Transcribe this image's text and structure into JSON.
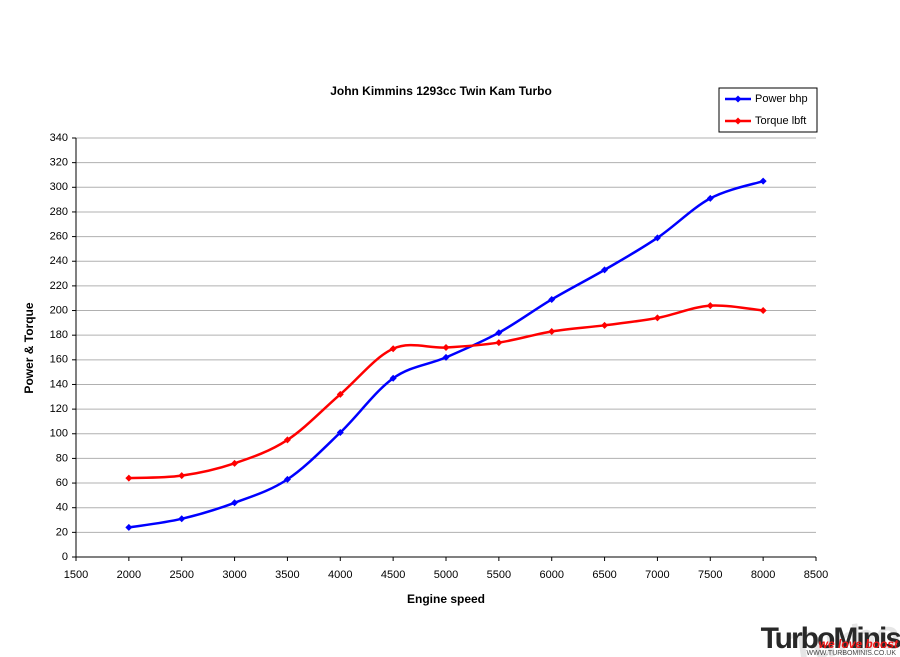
{
  "chart_data": {
    "type": "line",
    "title": "John Kimmins 1293cc Twin Kam Turbo",
    "x_label": "Engine speed",
    "y_label": "Power & Torque",
    "x": [
      2000,
      2500,
      3000,
      3500,
      4000,
      4500,
      5000,
      5500,
      6000,
      6500,
      7000,
      7500,
      8000
    ],
    "series": [
      {
        "name": "Power bhp",
        "color": "#0000ff",
        "values": [
          24,
          31,
          44,
          63,
          101,
          145,
          162,
          182,
          209,
          233,
          259,
          291,
          305
        ]
      },
      {
        "name": "Torque lbft",
        "color": "#ff0000",
        "values": [
          64,
          66,
          76,
          95,
          132,
          169,
          170,
          174,
          183,
          188,
          194,
          204,
          200
        ]
      }
    ],
    "xlim": [
      1500,
      8500
    ],
    "xticks": [
      1500,
      2000,
      2500,
      3000,
      3500,
      4000,
      4500,
      5000,
      5500,
      6000,
      6500,
      7000,
      7500,
      8000,
      8500
    ],
    "ylim": [
      0,
      340
    ],
    "yticks": [
      0,
      20,
      40,
      60,
      80,
      100,
      120,
      140,
      160,
      180,
      200,
      220,
      240,
      260,
      280,
      300,
      320,
      340
    ],
    "grid": true,
    "smooth": true,
    "legend": "top-right",
    "watermark": {
      "text": "TurboMinis",
      "tagline": "we love boost",
      "url": "WWW.TURBOMINIS.CO.UK"
    }
  }
}
